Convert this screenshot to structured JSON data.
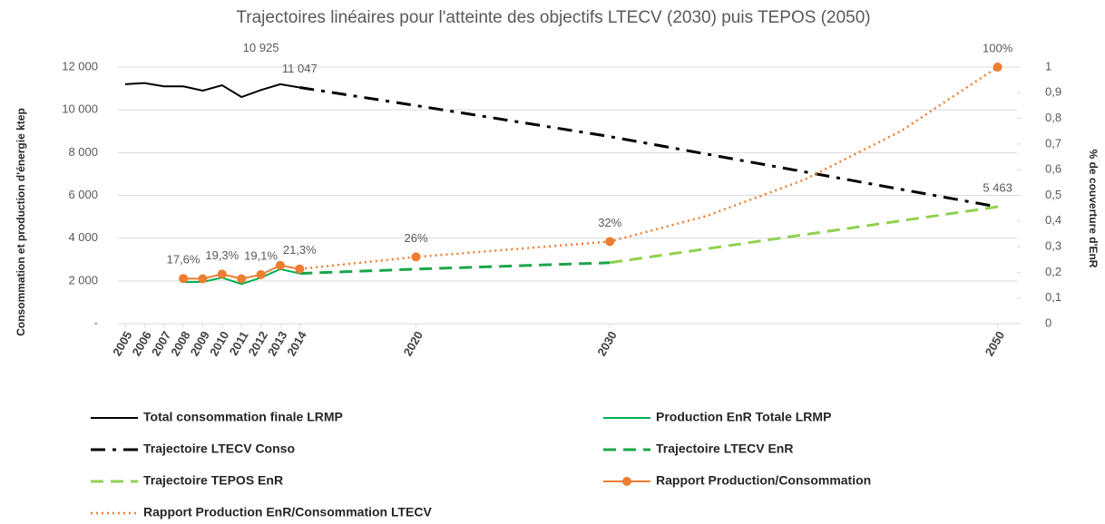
{
  "chart_data": {
    "type": "line",
    "title": "Trajectoires linéaires pour l'atteinte des objectifs LTECV (2030) puis TEPOS (2050)",
    "ylabel": "Consommation et production d'énergie ktep",
    "y2label": "% de couverture d'EnR",
    "xlim": [
      2004.6,
      2051
    ],
    "xticks": [
      2005,
      2006,
      2007,
      2008,
      2009,
      2010,
      2011,
      2012,
      2013,
      2014,
      2020,
      2030,
      2050
    ],
    "ylim": [
      0,
      12000
    ],
    "yticks": [
      {
        "value": 0,
        "label": "-"
      },
      {
        "value": 2000,
        "label": "2 000"
      },
      {
        "value": 4000,
        "label": "4 000"
      },
      {
        "value": 6000,
        "label": "6 000"
      },
      {
        "value": 8000,
        "label": "8 000"
      },
      {
        "value": 10000,
        "label": "10 000"
      },
      {
        "value": 12000,
        "label": "12 000"
      }
    ],
    "y2lim": [
      0,
      1
    ],
    "y2ticks": [
      0,
      {
        "value": 0.1,
        "label": "0,1"
      },
      {
        "value": 0.2,
        "label": "0,2"
      },
      {
        "value": 0.3,
        "label": "0,3"
      },
      {
        "value": 0.4,
        "label": "0,4"
      },
      {
        "value": 0.5,
        "label": "0,5"
      },
      {
        "value": 0.6,
        "label": "0,6"
      },
      {
        "value": 0.7,
        "label": "0,7"
      },
      {
        "value": 0.8,
        "label": "0,8"
      },
      {
        "value": 0.9,
        "label": "0,9"
      },
      1
    ],
    "grid": true,
    "legend": "bottom",
    "series": [
      {
        "name": "Total consommation finale LRMP",
        "color": "#000000",
        "style": "solid",
        "width": 2,
        "x": [
          2005,
          2006,
          2007,
          2008,
          2009,
          2010,
          2011,
          2012,
          2013,
          2014
        ],
        "values": [
          11200,
          11250,
          11100,
          11100,
          10900,
          11150,
          10600,
          10925,
          11200,
          11047
        ],
        "value_labels": [
          null,
          null,
          null,
          null,
          null,
          null,
          null,
          "10 925",
          null,
          "11 047"
        ]
      },
      {
        "name": "Production EnR Totale LRMP",
        "color": "#00b050",
        "style": "solid",
        "width": 2,
        "x": [
          2008,
          2009,
          2010,
          2011,
          2012,
          2013,
          2014
        ],
        "values": [
          1950,
          1950,
          2150,
          1850,
          2150,
          2550,
          2350
        ]
      },
      {
        "name": "Trajectoire LTECV Conso",
        "color": "#000000",
        "style": "dashdot",
        "width": 3,
        "x": [
          2014,
          2020,
          2030,
          2050
        ],
        "values": [
          11047,
          10200,
          8750,
          5463
        ],
        "value_labels": [
          null,
          null,
          null,
          "5 463"
        ]
      },
      {
        "name": "Trajectoire LTECV EnR",
        "color": "#1aa64a",
        "style": "dashed",
        "width": 3,
        "x": [
          2014,
          2020,
          2030
        ],
        "values": [
          2350,
          2550,
          2850
        ]
      },
      {
        "name": "Trajectoire TEPOS EnR",
        "color": "#92d050",
        "style": "dashed",
        "width": 3,
        "x": [
          2030,
          2050
        ],
        "values": [
          2850,
          5463
        ]
      },
      {
        "name": "Rapport Production/Consommation",
        "color": "#ed7d31",
        "style": "solid",
        "width": 2,
        "marker": true,
        "axis": "y2",
        "x": [
          2008,
          2009,
          2010,
          2011,
          2012,
          2013,
          2014,
          2017,
          2020,
          2025,
          2030,
          2040,
          2050
        ],
        "values": [
          0.176,
          0.175,
          0.193,
          0.175,
          0.191,
          0.227,
          0.213,
          null,
          0.26,
          null,
          0.32,
          null,
          1
        ],
        "value_labels": [
          "17,6%",
          null,
          "19,3%",
          null,
          "19,1%",
          null,
          "21,3%",
          null,
          "26%",
          null,
          "32%",
          null,
          "100%"
        ]
      },
      {
        "name": "Rapport Production EnR/Consommation LTECV",
        "color": "#ed7d31",
        "style": "dotted",
        "width": 2.5,
        "axis": "y2",
        "x": [
          2014,
          2020,
          2030,
          2035,
          2040,
          2045,
          2050
        ],
        "values": [
          0.213,
          0.26,
          0.32,
          0.42,
          0.56,
          0.75,
          1
        ]
      }
    ]
  }
}
